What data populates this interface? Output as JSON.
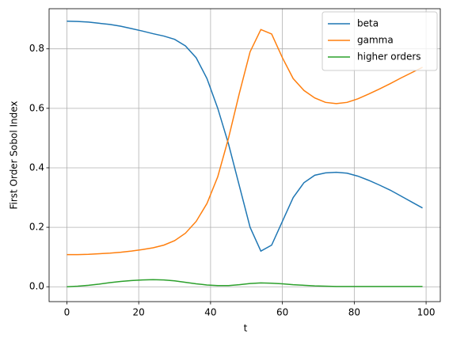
{
  "chart_data": {
    "type": "line",
    "xlabel": "t",
    "ylabel": "First Order Sobol Index",
    "x": [
      0,
      3,
      6,
      9,
      12,
      15,
      18,
      21,
      24,
      27,
      30,
      33,
      36,
      39,
      42,
      45,
      48,
      51,
      54,
      57,
      60,
      63,
      66,
      69,
      72,
      75,
      78,
      81,
      84,
      87,
      90,
      93,
      96,
      99
    ],
    "series": [
      {
        "name": "beta",
        "color": "#1f77b4",
        "values": [
          0.893,
          0.892,
          0.89,
          0.886,
          0.882,
          0.876,
          0.868,
          0.86,
          0.851,
          0.843,
          0.832,
          0.81,
          0.77,
          0.7,
          0.6,
          0.48,
          0.34,
          0.2,
          0.12,
          0.14,
          0.22,
          0.3,
          0.35,
          0.375,
          0.383,
          0.385,
          0.382,
          0.372,
          0.358,
          0.342,
          0.325,
          0.305,
          0.285,
          0.265
        ]
      },
      {
        "name": "gamma",
        "color": "#ff7f0e",
        "values": [
          0.108,
          0.108,
          0.109,
          0.111,
          0.113,
          0.116,
          0.12,
          0.125,
          0.131,
          0.14,
          0.155,
          0.18,
          0.22,
          0.28,
          0.37,
          0.5,
          0.65,
          0.79,
          0.865,
          0.85,
          0.77,
          0.7,
          0.66,
          0.635,
          0.62,
          0.616,
          0.62,
          0.632,
          0.648,
          0.665,
          0.683,
          0.702,
          0.72,
          0.738
        ]
      },
      {
        "name": "higher orders",
        "color": "#2ca02c",
        "values": [
          0.0,
          0.002,
          0.005,
          0.009,
          0.014,
          0.018,
          0.021,
          0.023,
          0.024,
          0.023,
          0.02,
          0.015,
          0.01,
          0.006,
          0.004,
          0.004,
          0.007,
          0.011,
          0.013,
          0.012,
          0.01,
          0.007,
          0.005,
          0.003,
          0.002,
          0.001,
          0.001,
          0.001,
          0.001,
          0.001,
          0.001,
          0.001,
          0.001,
          0.001
        ]
      }
    ],
    "xlim": [
      -4.95,
      103.95
    ],
    "xticks": [
      0,
      20,
      40,
      60,
      80,
      100
    ],
    "ylim": [
      -0.05,
      0.935
    ],
    "yticks": [
      {
        "value": 0,
        "label": "0.0"
      },
      {
        "value": 0.2,
        "label": "0.2"
      },
      {
        "value": 0.4,
        "label": "0.4"
      },
      {
        "value": 0.6,
        "label": "0.6"
      },
      {
        "value": 0.8,
        "label": "0.8"
      }
    ],
    "grid": true,
    "legend": "upper right"
  }
}
